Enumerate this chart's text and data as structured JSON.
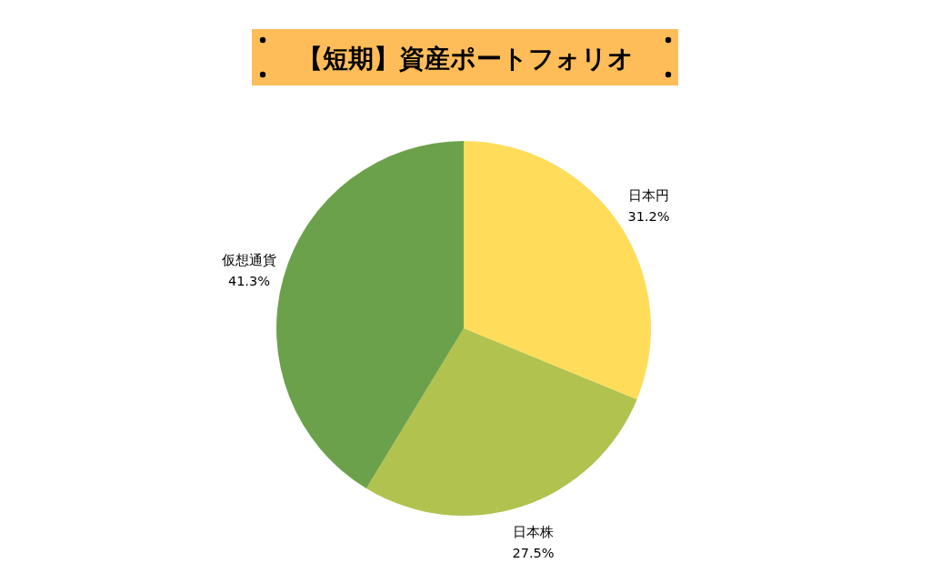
{
  "chart_data": {
    "type": "pie",
    "title": "【短期】資産ポートフォリオ",
    "categories": [
      "日本円",
      "日本株",
      "仮想通貨"
    ],
    "values": [
      31.2,
      27.5,
      41.3
    ],
    "colors": [
      "#ffdd5a",
      "#b1c24f",
      "#6ca14b"
    ],
    "value_labels": [
      "31.2%",
      "27.5%",
      "41.3%"
    ]
  }
}
